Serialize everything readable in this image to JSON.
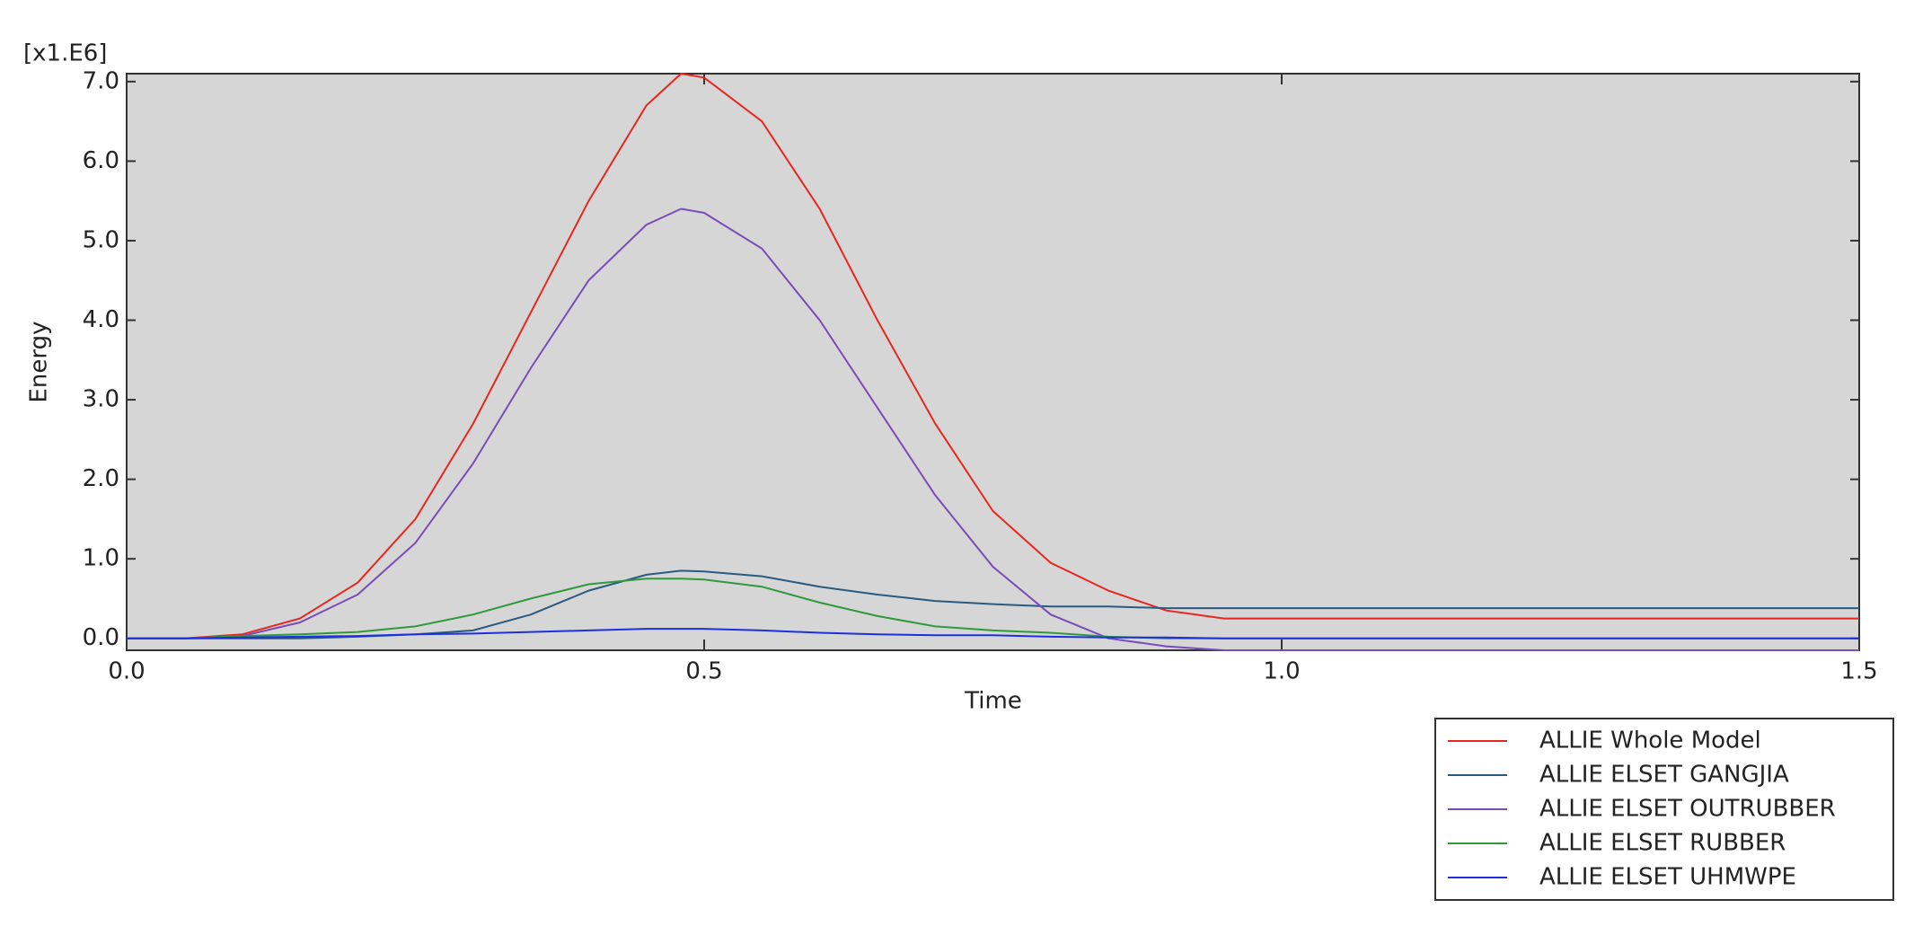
{
  "chart_data": {
    "type": "line",
    "scale_label": "[x1.E6]",
    "x_label": "Time",
    "y_label": "Energy",
    "x": [
      0,
      0.05,
      0.1,
      0.15,
      0.2,
      0.25,
      0.3,
      0.35,
      0.4,
      0.45,
      0.48,
      0.5,
      0.55,
      0.6,
      0.65,
      0.7,
      0.75,
      0.8,
      0.85,
      0.9,
      0.95,
      1.0,
      1.05,
      1.1,
      1.15,
      1.2,
      1.25,
      1.3,
      1.35,
      1.4,
      1.45,
      1.5
    ],
    "series": [
      {
        "name": "ALLIE Whole Model",
        "color": "#e8261e",
        "values": [
          0,
          0,
          0.05,
          0.25,
          0.7,
          1.5,
          2.7,
          4.1,
          5.5,
          6.7,
          7.1,
          7.05,
          6.5,
          5.4,
          4.0,
          2.7,
          1.6,
          0.95,
          0.6,
          0.35,
          0.25,
          0.25,
          0.25,
          0.25,
          0.25,
          0.25,
          0.25,
          0.25,
          0.25,
          0.25,
          0.25,
          0.25
        ]
      },
      {
        "name": "ALLIE ELSET GANGJIA",
        "color": "#2a5a80",
        "values": [
          0,
          0,
          0,
          0,
          0.02,
          0.05,
          0.1,
          0.3,
          0.6,
          0.8,
          0.85,
          0.84,
          0.78,
          0.65,
          0.55,
          0.47,
          0.43,
          0.4,
          0.4,
          0.38,
          0.38,
          0.38,
          0.38,
          0.38,
          0.38,
          0.38,
          0.38,
          0.38,
          0.38,
          0.38,
          0.38,
          0.38
        ]
      },
      {
        "name": "ALLIE ELSET OUTRUBBER",
        "color": "#7a4cb8",
        "values": [
          0,
          0,
          0.03,
          0.2,
          0.55,
          1.2,
          2.2,
          3.4,
          4.5,
          5.2,
          5.4,
          5.35,
          4.9,
          4.0,
          2.9,
          1.8,
          0.9,
          0.3,
          0,
          -0.1,
          -0.15,
          -0.15,
          -0.15,
          -0.15,
          -0.15,
          -0.15,
          -0.15,
          -0.15,
          -0.15,
          -0.15,
          -0.15,
          -0.15
        ]
      },
      {
        "name": "ALLIE ELSET RUBBER",
        "color": "#2f9a3a",
        "values": [
          0,
          0,
          0.03,
          0.05,
          0.08,
          0.15,
          0.3,
          0.5,
          0.68,
          0.75,
          0.75,
          0.74,
          0.65,
          0.45,
          0.28,
          0.15,
          0.1,
          0.07,
          0.02,
          0,
          0,
          0,
          0,
          0,
          0,
          0,
          0,
          0,
          0,
          0,
          0,
          0
        ]
      },
      {
        "name": "ALLIE ELSET UHMWPE",
        "color": "#1e2ee0",
        "values": [
          0,
          0,
          0.01,
          0.02,
          0.03,
          0.05,
          0.06,
          0.08,
          0.1,
          0.12,
          0.12,
          0.12,
          0.1,
          0.07,
          0.05,
          0.04,
          0.04,
          0.02,
          0.01,
          0.01,
          0,
          0,
          0,
          0,
          0,
          0,
          0,
          0,
          0,
          0,
          0,
          0
        ]
      }
    ],
    "xlim": [
      0,
      1.5
    ],
    "xticks": [
      {
        "value": 0,
        "label": "0.0"
      },
      0.5,
      {
        "value": 1,
        "label": "1.0"
      },
      1.5
    ],
    "ylim": [
      -0.15,
      7.1
    ],
    "yticks": [
      {
        "value": 0,
        "label": "0.0"
      },
      {
        "value": 1,
        "label": "1.0"
      },
      {
        "value": 2,
        "label": "2.0"
      },
      {
        "value": 3,
        "label": "3.0"
      },
      {
        "value": 4,
        "label": "4.0"
      },
      {
        "value": 5,
        "label": "5.0"
      },
      {
        "value": 6,
        "label": "6.0"
      },
      {
        "value": 7,
        "label": "7.0"
      }
    ],
    "plot_background": "#d6d6d6",
    "legend": "bottom-right"
  }
}
